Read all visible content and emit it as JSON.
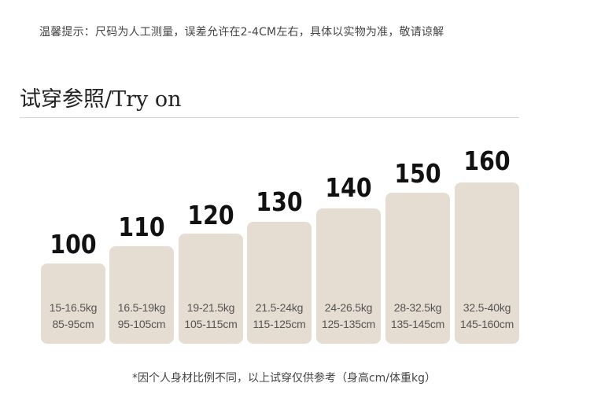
{
  "notice": "温馨提示：尺码为人工测量，误差允许在2-4CM左右，具体以实物为准，敬请谅解",
  "section_title": "试穿参照/Try on",
  "sizes": [
    {
      "size": "100",
      "weight": "15-16.5kg",
      "height": "85-95cm"
    },
    {
      "size": "110",
      "weight": "16.5-19kg",
      "height": "95-105cm"
    },
    {
      "size": "120",
      "weight": "19-21.5kg",
      "height": "105-115cm"
    },
    {
      "size": "130",
      "weight": "21.5-24kg",
      "height": "115-125cm"
    },
    {
      "size": "140",
      "weight": "24-26.5kg",
      "height": "125-135cm"
    },
    {
      "size": "150",
      "weight": "28-32.5kg",
      "height": "135-145cm"
    },
    {
      "size": "160",
      "weight": "32.5-40kg",
      "height": "145-160cm"
    }
  ],
  "card_color": "#e6ddd2",
  "footnote": "*因个人身材比例不同，以上试穿仅供参考（身高cm/体重kg）"
}
